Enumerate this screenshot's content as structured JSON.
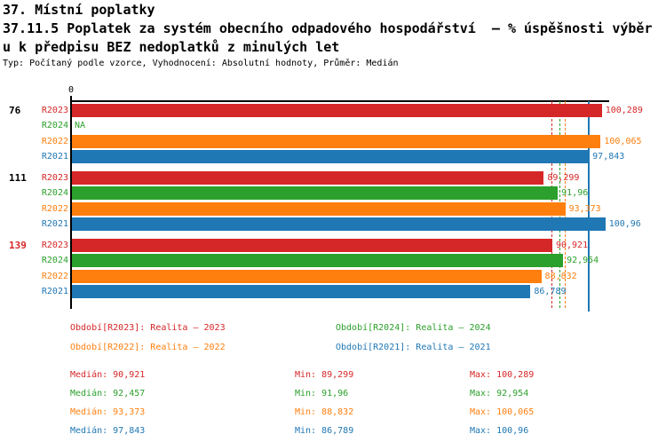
{
  "header": {
    "line1": "37. Místní poplatky",
    "line2": "37.11.5 Poplatek za systém obecního odpadového hospodářství  – % úspěšnosti výběr",
    "line3": "u k předpisu BEZ nedoplatků z minulých let",
    "meta": "Typ: Počítaný podle vzorce, Vyhodnocení: Absolutní hodnoty, Průměr: Medián"
  },
  "colors": {
    "R2023": "#d62728",
    "R2024": "#2ca02c",
    "R2022": "#ff7f0e",
    "R2021": "#1f77b4",
    "axis": "#000000",
    "highlight_group": "#d62728"
  },
  "chart_data": {
    "type": "bar",
    "orientation": "horizontal",
    "xlim": [
      0,
      101.7
    ],
    "x_axis": {
      "tick": "0"
    },
    "grid": false,
    "groups": [
      {
        "label": "76",
        "label_color": "#000000",
        "rows": [
          {
            "series": "R2023",
            "value": 100.289,
            "display": "100,289"
          },
          {
            "series": "R2024",
            "value": null,
            "display": "NA"
          },
          {
            "series": "R2022",
            "value": 100.065,
            "display": "100,065"
          },
          {
            "series": "R2021",
            "value": 97.843,
            "display": "97,843"
          }
        ]
      },
      {
        "label": "111",
        "label_color": "#000000",
        "rows": [
          {
            "series": "R2023",
            "value": 89.299,
            "display": "89,299"
          },
          {
            "series": "R2024",
            "value": 91.96,
            "display": "91,96"
          },
          {
            "series": "R2022",
            "value": 93.373,
            "display": "93,373"
          },
          {
            "series": "R2021",
            "value": 100.96,
            "display": "100,96"
          }
        ]
      },
      {
        "label": "139",
        "label_color": "#d62728",
        "rows": [
          {
            "series": "R2023",
            "value": 90.921,
            "display": "90,921"
          },
          {
            "series": "R2024",
            "value": 92.954,
            "display": "92,954"
          },
          {
            "series": "R2022",
            "value": 88.832,
            "display": "88,832"
          },
          {
            "series": "R2021",
            "value": 86.789,
            "display": "86,789"
          }
        ]
      }
    ],
    "median_lines": [
      {
        "series": "R2023",
        "value": 90.921,
        "style": "dashed"
      },
      {
        "series": "R2024",
        "value": 92.457,
        "style": "dashed"
      },
      {
        "series": "R2022",
        "value": 93.373,
        "style": "dashed"
      },
      {
        "series": "R2021",
        "value": 97.843,
        "style": "solid"
      }
    ]
  },
  "legend": [
    {
      "series": "R2023",
      "label": "Období[R2023]: Realita – 2023"
    },
    {
      "series": "R2024",
      "label": "Období[R2024]: Realita – 2024"
    },
    {
      "series": "R2022",
      "label": "Období[R2022]: Realita – 2022"
    },
    {
      "series": "R2021",
      "label": "Období[R2021]: Realita – 2021"
    }
  ],
  "stats": {
    "median_label": "Medián:",
    "min_label": "Min:",
    "max_label": "Max:",
    "rows": [
      {
        "series": "R2023",
        "median": "90,921",
        "min": "89,299",
        "max": "100,289"
      },
      {
        "series": "R2024",
        "median": "92,457",
        "min": "91,96",
        "max": "92,954"
      },
      {
        "series": "R2022",
        "median": "93,373",
        "min": "88,832",
        "max": "100,065"
      },
      {
        "series": "R2021",
        "median": "97,843",
        "min": "86,789",
        "max": "100,96"
      }
    ]
  }
}
